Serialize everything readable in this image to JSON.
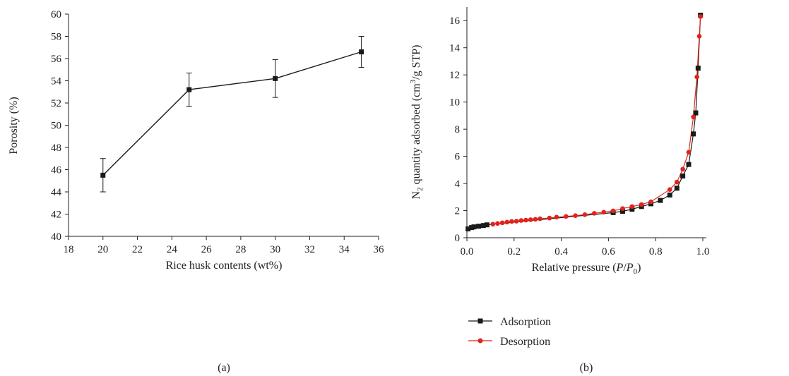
{
  "chart_data": [
    {
      "type": "line",
      "panel_label": "(a)",
      "xlabel": "Rice husk contents (wt%)",
      "ylabel": "Porosity (%)",
      "xlim": [
        18,
        36
      ],
      "ylim": [
        40,
        60
      ],
      "xticks": [
        18,
        20,
        22,
        24,
        26,
        28,
        30,
        32,
        34,
        36
      ],
      "yticks": [
        40,
        42,
        44,
        46,
        48,
        50,
        52,
        54,
        56,
        58,
        60
      ],
      "grid": false,
      "series": [
        {
          "x": [
            20,
            25,
            30,
            35
          ],
          "y": [
            45.5,
            53.2,
            54.2,
            56.6
          ],
          "yerr": [
            1.5,
            1.5,
            1.7,
            1.4
          ],
          "marker": "square",
          "color": "#1a1a1a"
        }
      ]
    },
    {
      "type": "line",
      "panel_label": "(b)",
      "xlabel": {
        "prefix": "Relative pressure (",
        "var1": "P",
        "slash": "/",
        "var2": "P",
        "sub": "0",
        "suffix": ")"
      },
      "ylabel": {
        "part1": "N",
        "sub": "2",
        "part2": " quantity adsorbed (cm",
        "sup": "3",
        "part3": "/g STP)"
      },
      "xlim": [
        0,
        1.0
      ],
      "ylim": [
        0,
        17
      ],
      "xticks": [
        "0.0",
        "0.2",
        "0.4",
        "0.6",
        "0.8",
        "1.0"
      ],
      "yticks": [
        0,
        2,
        4,
        6,
        8,
        10,
        12,
        14,
        16
      ],
      "grid": false,
      "legend_position": "bottom-left",
      "series": [
        {
          "name": "Adsorption",
          "color": "#1a1a1a",
          "marker": "square",
          "x": [
            0.005,
            0.02,
            0.03,
            0.05,
            0.07,
            0.085,
            0.62,
            0.66,
            0.7,
            0.74,
            0.78,
            0.82,
            0.86,
            0.89,
            0.915,
            0.94,
            0.96,
            0.97,
            0.98,
            0.99
          ],
          "y": [
            0.65,
            0.75,
            0.8,
            0.85,
            0.9,
            0.95,
            1.85,
            1.95,
            2.1,
            2.3,
            2.5,
            2.75,
            3.15,
            3.65,
            4.55,
            5.4,
            7.65,
            9.2,
            12.5,
            16.4
          ]
        },
        {
          "name": "Desorption",
          "color": "#e0241b",
          "marker": "circle",
          "x": [
            0.11,
            0.13,
            0.15,
            0.17,
            0.19,
            0.21,
            0.23,
            0.25,
            0.27,
            0.29,
            0.31,
            0.35,
            0.38,
            0.42,
            0.46,
            0.5,
            0.54,
            0.58,
            0.62,
            0.66,
            0.7,
            0.74,
            0.78,
            0.86,
            0.89,
            0.915,
            0.94,
            0.96,
            0.975,
            0.985,
            0.99
          ],
          "y": [
            1.0,
            1.05,
            1.1,
            1.15,
            1.2,
            1.22,
            1.27,
            1.3,
            1.33,
            1.36,
            1.4,
            1.45,
            1.52,
            1.57,
            1.63,
            1.7,
            1.8,
            1.88,
            1.98,
            2.15,
            2.3,
            2.45,
            2.65,
            3.55,
            4.1,
            5.05,
            6.3,
            8.9,
            11.85,
            14.85,
            16.3
          ]
        }
      ]
    }
  ]
}
